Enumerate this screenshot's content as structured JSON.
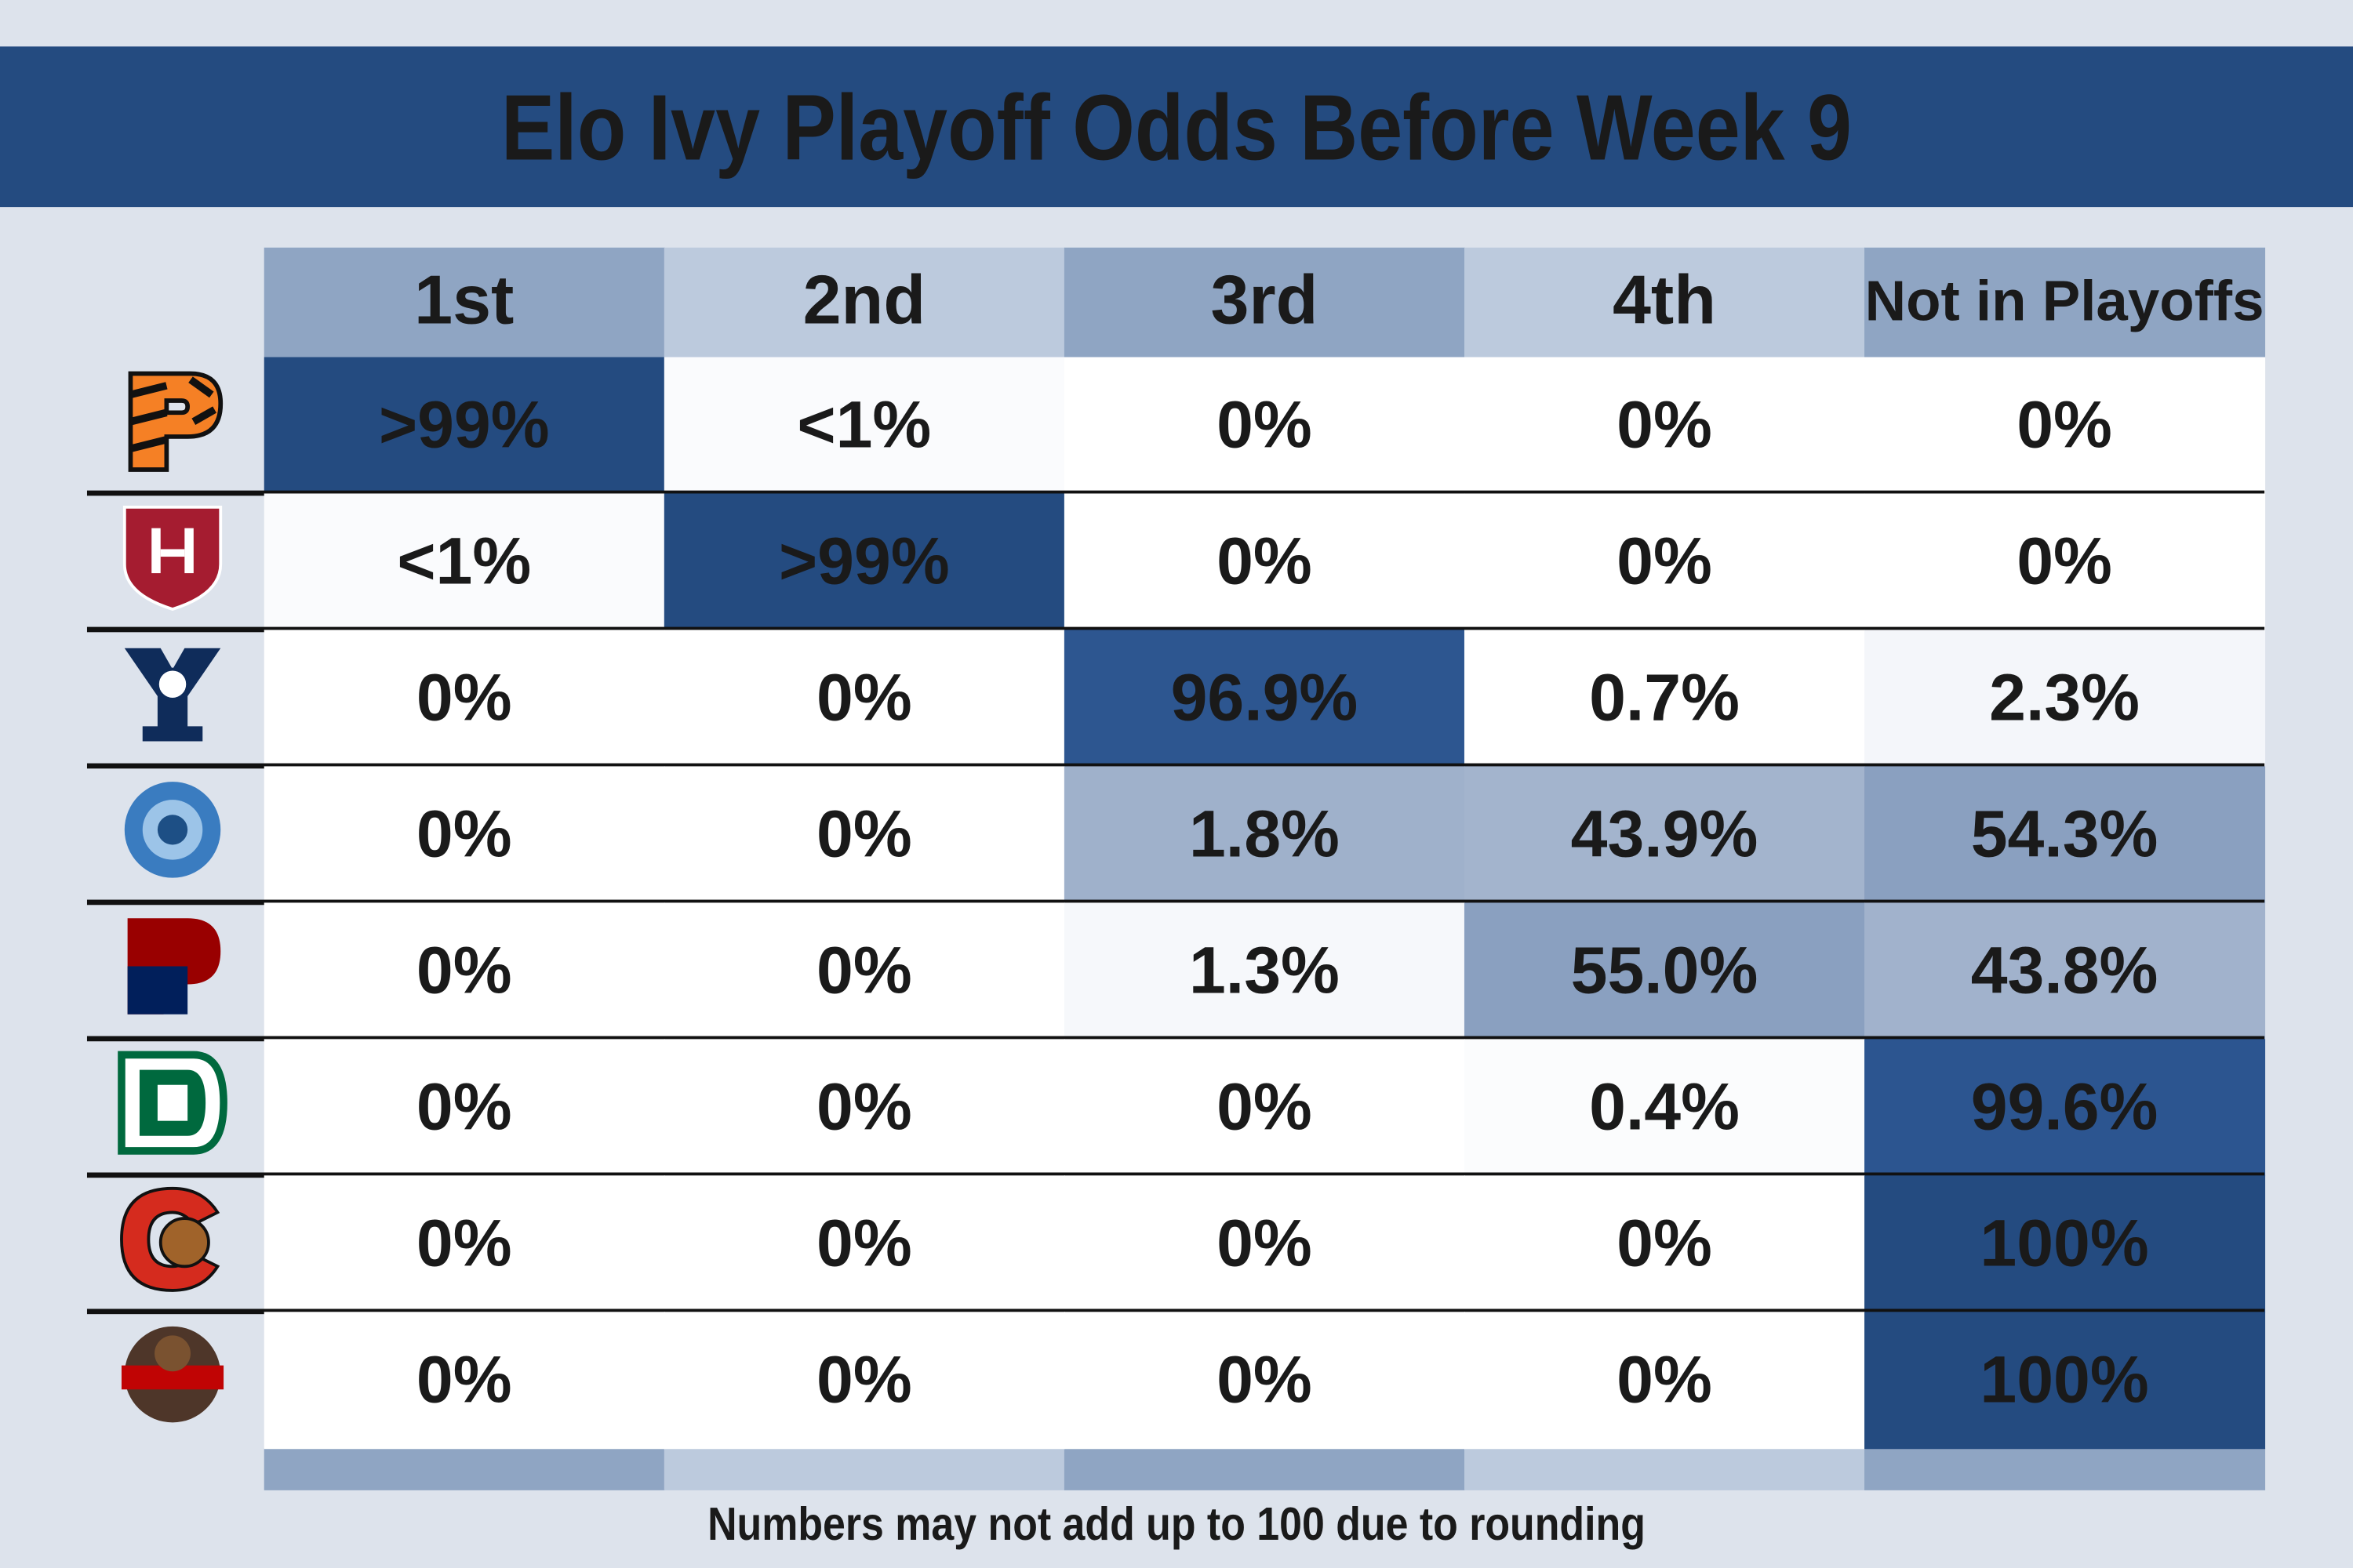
{
  "header": {
    "title": "Elo Ivy Playoff Odds Before Week 9"
  },
  "table": {
    "columns": [
      "1st",
      "2nd",
      "3rd",
      "4th",
      "Not in Playoffs"
    ],
    "rows": [
      [
        ">99%",
        "<1%",
        "0%",
        "0%",
        "0%"
      ],
      [
        "<1%",
        ">99%",
        "0%",
        "0%",
        "0%"
      ],
      [
        "0%",
        "0%",
        "96.9%",
        "0.7%",
        "2.3%"
      ],
      [
        "0%",
        "0%",
        "1.8%",
        "43.9%",
        "54.3%"
      ],
      [
        "0%",
        "0%",
        "1.3%",
        "55.0%",
        "43.8%"
      ],
      [
        "0%",
        "0%",
        "0%",
        "0.4%",
        "99.6%"
      ],
      [
        "0%",
        "0%",
        "0%",
        "0%",
        "100%"
      ],
      [
        "0%",
        "0%",
        "0%",
        "0%",
        "100%"
      ]
    ],
    "colors": [
      [
        "#244b80",
        "#fafbfd",
        "#ffffff",
        "#ffffff",
        "#ffffff"
      ],
      [
        "#fafbfd",
        "#244b80",
        "#ffffff",
        "#ffffff",
        "#ffffff"
      ],
      [
        "#ffffff",
        "#ffffff",
        "#2d5690",
        "#ffffff",
        "#f4f6fa"
      ],
      [
        "#ffffff",
        "#ffffff",
        "#9fb1cb",
        "#a3b4cd",
        "#8aa0c0"
      ],
      [
        "#ffffff",
        "#ffffff",
        "#f6f8fb",
        "#8aa0c0",
        "#a1b2cc"
      ],
      [
        "#ffffff",
        "#ffffff",
        "#ffffff",
        "#fbfcfd",
        "#2c5590"
      ],
      [
        "#ffffff",
        "#ffffff",
        "#ffffff",
        "#ffffff",
        "#244b80"
      ],
      [
        "#ffffff",
        "#ffffff",
        "#ffffff",
        "#ffffff",
        "#244b80"
      ]
    ]
  },
  "footnote": "Numbers may not add up to 100 due to rounding"
}
